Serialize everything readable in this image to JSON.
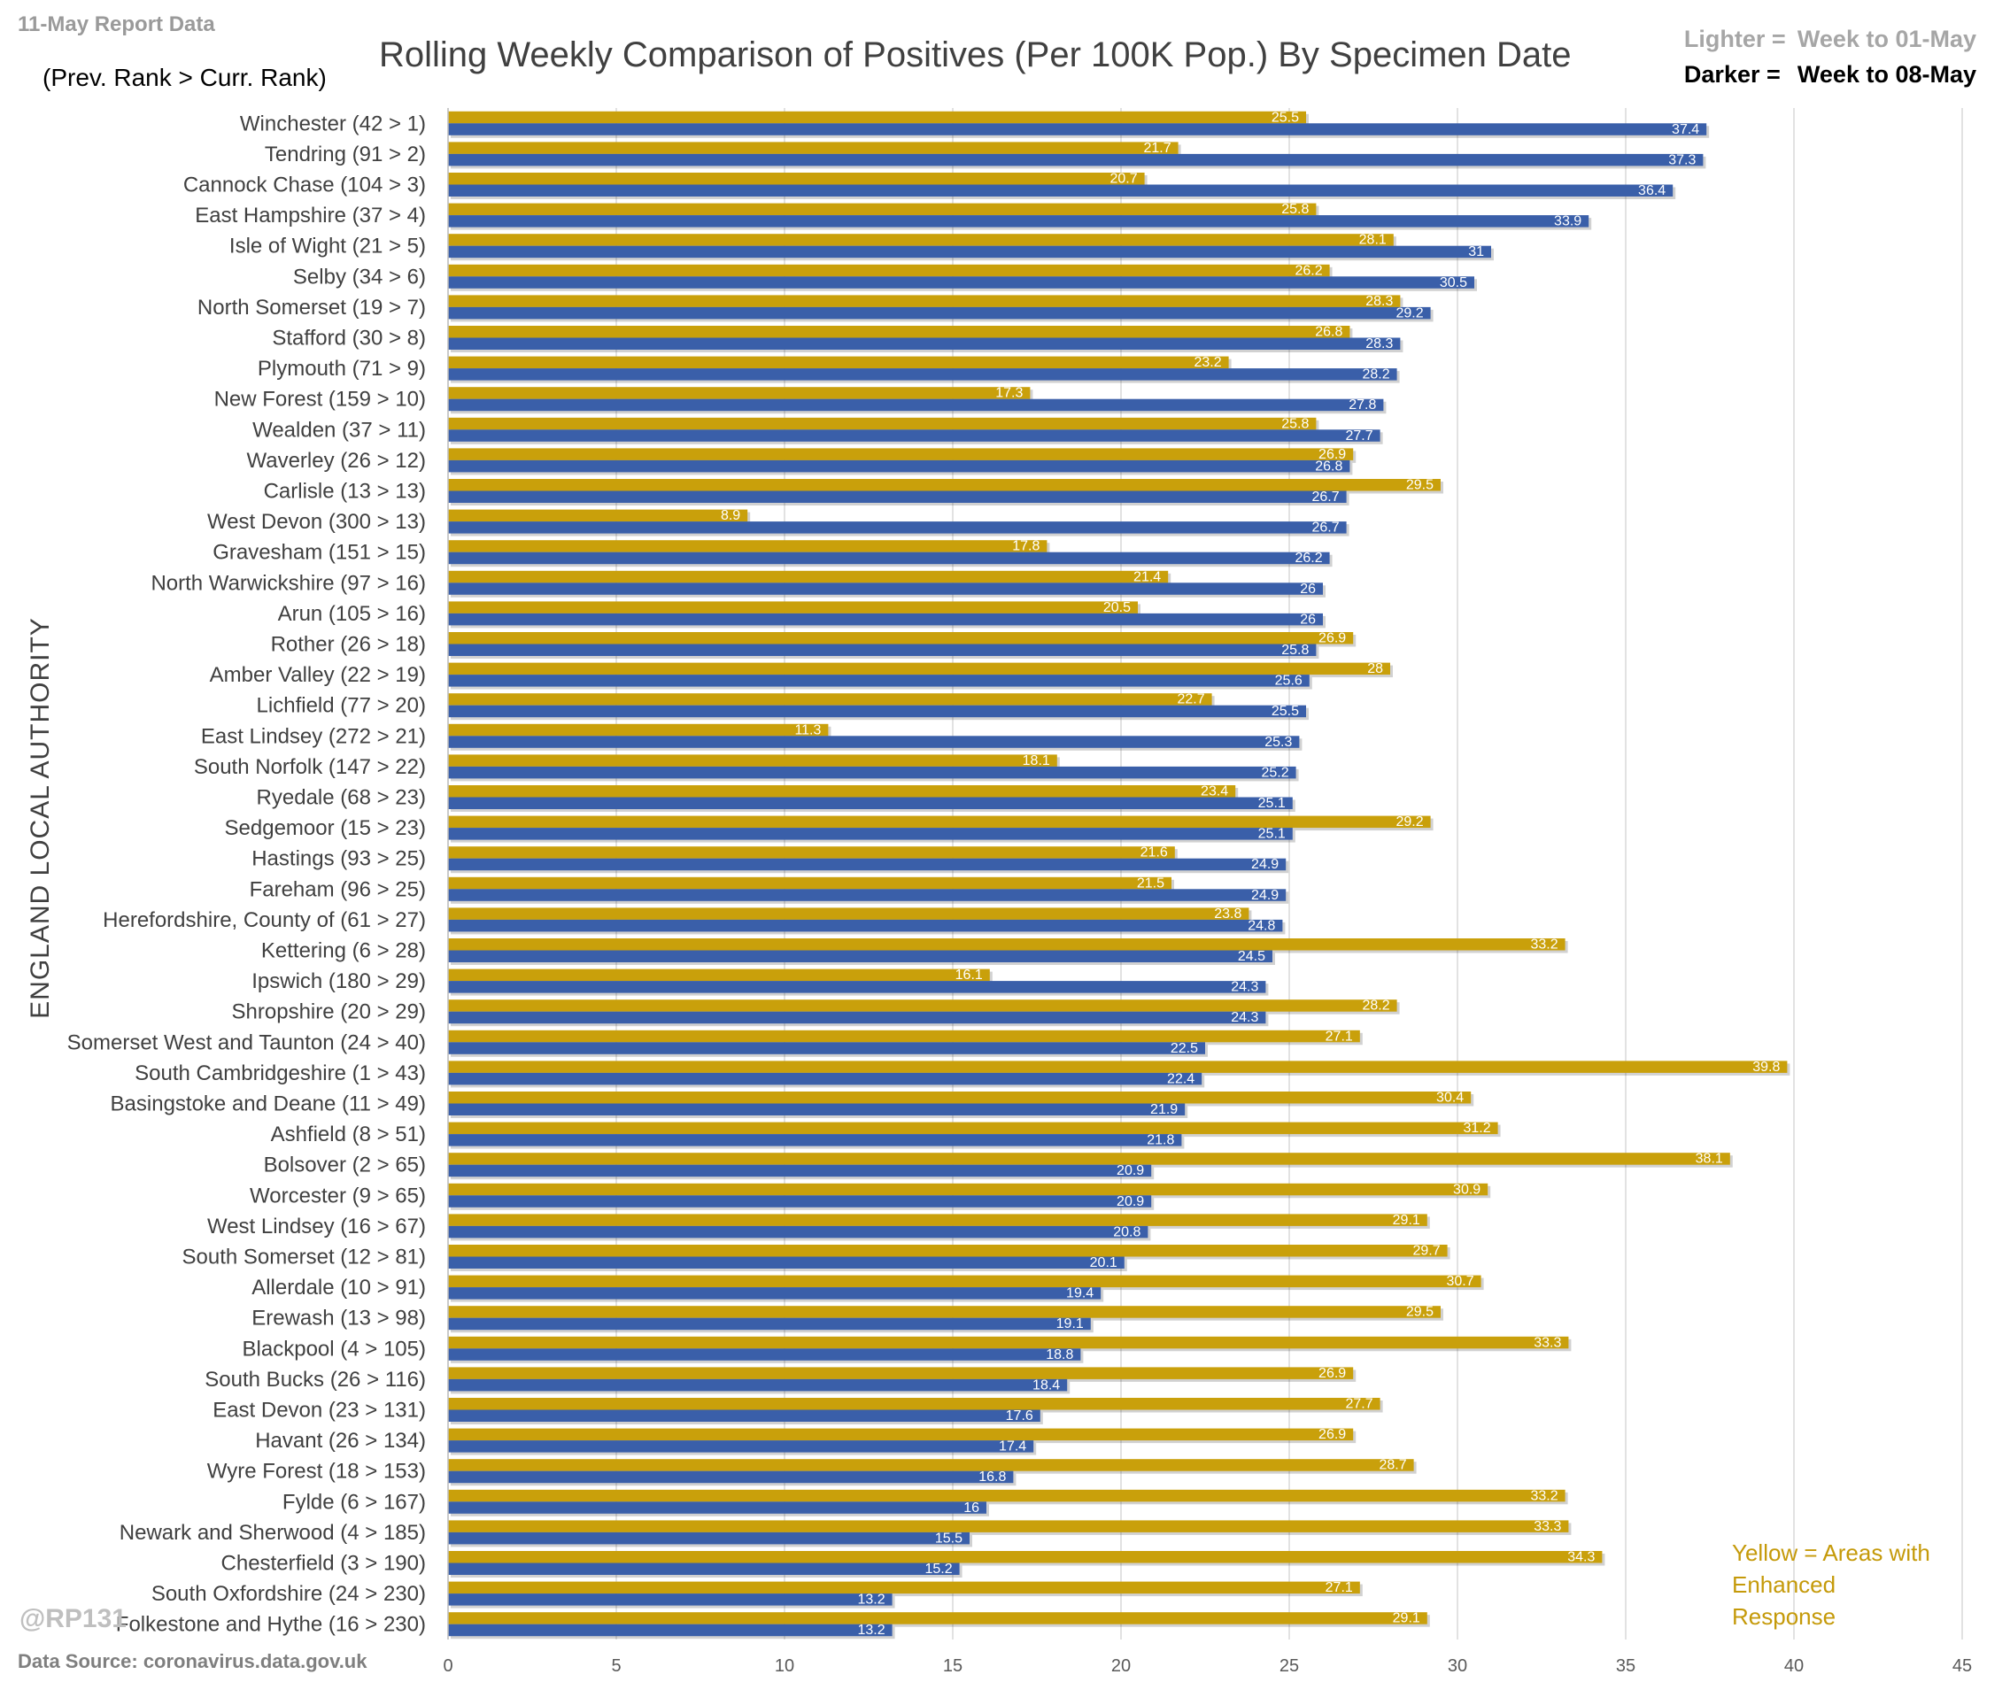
{
  "header": {
    "report_date": "11-May Report Data",
    "rank_note": "(Prev. Rank > Curr. Rank)",
    "title": "Rolling Weekly Comparison of Positives  (Per 100K Pop.) By Specimen Date"
  },
  "legend": {
    "lighter_label": "Lighter =",
    "lighter_value": "Week to 01-May",
    "darker_label": "Darker =",
    "darker_value": "Week to 08-May"
  },
  "notes": {
    "enhanced": "Yellow = Areas with Enhanced Response",
    "handle": "@RP131",
    "source": "Data Source: coronavirus.data.gov.uk"
  },
  "colors": {
    "prev_week": "#c9a00b",
    "curr_week": "#3a5fa9",
    "grid": "#d9d9d9"
  },
  "chart_data": {
    "type": "bar",
    "orientation": "horizontal",
    "ylabel": "ENGLAND LOCAL AUTHORITY",
    "xlim": [
      0,
      45
    ],
    "x_ticks": [
      0,
      5,
      10,
      15,
      20,
      25,
      30,
      35,
      40,
      45
    ],
    "grid": true,
    "categories": [
      "Winchester (42 > 1)",
      "Tendring (91 > 2)",
      "Cannock Chase (104 > 3)",
      "East Hampshire (37 > 4)",
      "Isle of Wight (21 > 5)",
      "Selby (34 > 6)",
      "North Somerset (19 > 7)",
      "Stafford (30 > 8)",
      "Plymouth (71 > 9)",
      "New Forest (159 > 10)",
      "Wealden (37 > 11)",
      "Waverley (26 > 12)",
      "Carlisle (13 > 13)",
      "West Devon (300 > 13)",
      "Gravesham (151 > 15)",
      "North Warwickshire (97 > 16)",
      "Arun (105 > 16)",
      "Rother (26 > 18)",
      "Amber Valley (22 > 19)",
      "Lichfield (77 > 20)",
      "East Lindsey (272 > 21)",
      "South Norfolk (147 > 22)",
      "Ryedale (68 > 23)",
      "Sedgemoor (15 > 23)",
      "Hastings (93 > 25)",
      "Fareham (96 > 25)",
      "Herefordshire, County of (61 > 27)",
      "Kettering (6 > 28)",
      "Ipswich (180 > 29)",
      "Shropshire (20 > 29)",
      "Somerset West and Taunton (24 > 40)",
      "South Cambridgeshire (1 > 43)",
      "Basingstoke and Deane (11 > 49)",
      "Ashfield (8 > 51)",
      "Bolsover (2 > 65)",
      "Worcester (9 > 65)",
      "West Lindsey (16 > 67)",
      "South Somerset (12 > 81)",
      "Allerdale (10 > 91)",
      "Erewash (13 > 98)",
      "Blackpool (4 > 105)",
      "South Bucks (26 > 116)",
      "East Devon (23 > 131)",
      "Havant (26 > 134)",
      "Wyre Forest (18 > 153)",
      "Fylde (6 > 167)",
      "Newark and Sherwood (4 > 185)",
      "Chesterfield (3 > 190)",
      "South Oxfordshire (24 > 230)",
      "Folkestone and Hythe (16 > 230)"
    ],
    "series": [
      {
        "name": "Week to 01-May",
        "values": [
          25.5,
          21.7,
          20.7,
          25.8,
          28.1,
          26.2,
          28.3,
          26.8,
          23.2,
          17.3,
          25.8,
          26.9,
          29.5,
          8.9,
          17.8,
          21.4,
          20.5,
          26.9,
          28,
          22.7,
          11.3,
          18.1,
          23.4,
          29.2,
          21.6,
          21.5,
          23.8,
          33.2,
          16.1,
          28.2,
          27.1,
          39.8,
          30.4,
          31.2,
          38.1,
          30.9,
          29.1,
          29.7,
          30.7,
          29.5,
          33.3,
          26.9,
          27.7,
          26.9,
          28.7,
          33.2,
          33.3,
          34.3,
          27.1,
          29.1
        ]
      },
      {
        "name": "Week to 08-May",
        "values": [
          37.4,
          37.3,
          36.4,
          33.9,
          31,
          30.5,
          29.2,
          28.3,
          28.2,
          27.8,
          27.7,
          26.8,
          26.7,
          26.7,
          26.2,
          26,
          26,
          25.8,
          25.6,
          25.5,
          25.3,
          25.2,
          25.1,
          25.1,
          24.9,
          24.9,
          24.8,
          24.5,
          24.3,
          24.3,
          22.5,
          22.4,
          21.9,
          21.8,
          20.9,
          20.9,
          20.8,
          20.1,
          19.4,
          19.1,
          18.8,
          18.4,
          17.6,
          17.4,
          16.8,
          16,
          15.5,
          15.2,
          13.2,
          13.2
        ]
      }
    ]
  }
}
